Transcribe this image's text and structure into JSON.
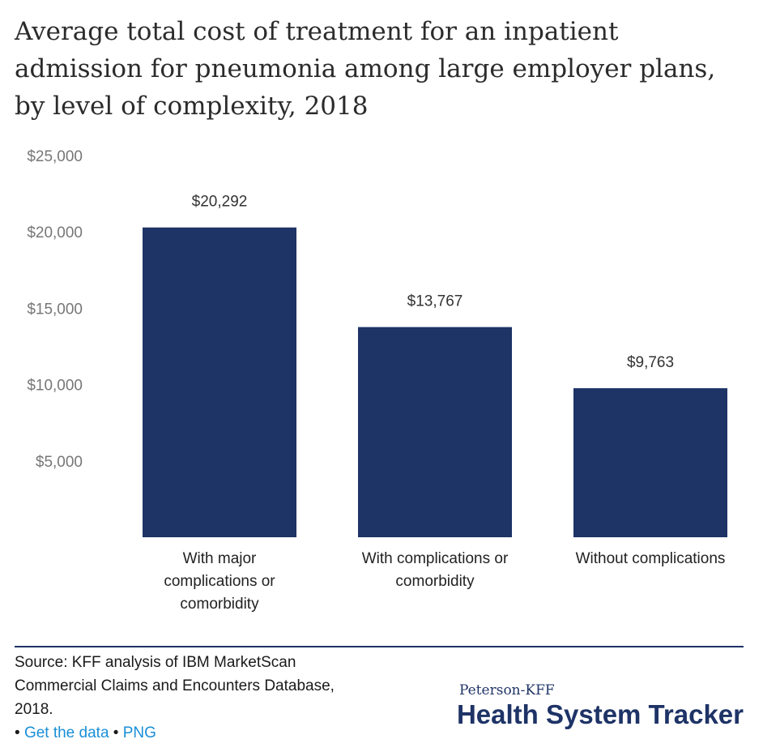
{
  "title": "Average total cost of treatment for an inpatient admission for pneumonia among large employer plans, by level of complexity, 2018",
  "chart_data": {
    "type": "bar",
    "title": "Average total cost of treatment for an inpatient admission for pneumonia among large employer plans, by level of complexity, 2018",
    "categories": [
      [
        "With major",
        "complications or",
        "comorbidity"
      ],
      [
        "With complications or",
        "comorbidity"
      ],
      [
        "Without complications"
      ]
    ],
    "values": [
      20292,
      13767,
      9763
    ],
    "value_labels": [
      "$20,292",
      "$13,767",
      "$9,763"
    ],
    "yticks": [
      5000,
      10000,
      15000,
      20000,
      25000
    ],
    "ytick_labels": [
      "$5,000",
      "$10,000",
      "$15,000",
      "$20,000",
      "$25,000"
    ],
    "ylim": [
      0,
      25000
    ],
    "xlabel": "",
    "ylabel": "",
    "grid": false,
    "bar_color": "#1e3366"
  },
  "source": {
    "text": "Source: KFF analysis of IBM MarketScan Commercial Claims and Encounters Database, 2018.",
    "bullet": "•",
    "get_data": "Get the data",
    "png": "PNG"
  },
  "logo": {
    "small": "Peterson-KFF",
    "big": "Health System Tracker"
  }
}
